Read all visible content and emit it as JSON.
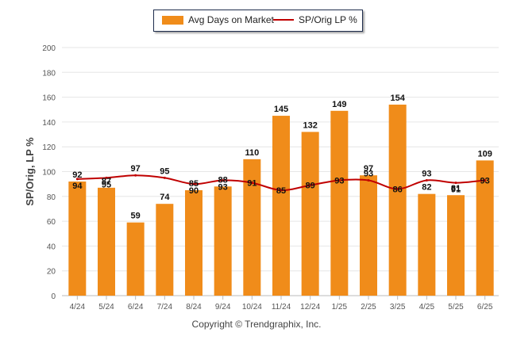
{
  "legend": {
    "bar_label": "Avg Days on Market",
    "line_label": "SP/Orig LP %"
  },
  "footer": {
    "copyright": "Copyright © Trendgraphix, Inc."
  },
  "colors": {
    "bar": "#f08c1a",
    "line": "#c00000",
    "grid": "#e6e6e6"
  },
  "chart_data": {
    "type": "bar",
    "ylabel": "SP/Orig, LP %",
    "xlabel": "",
    "ylim": [
      0,
      200
    ],
    "yticks": [
      0,
      20,
      40,
      60,
      80,
      100,
      120,
      140,
      160,
      180,
      200
    ],
    "grid": true,
    "legend_position": "top-center",
    "categories": [
      "4/24",
      "5/24",
      "6/24",
      "7/24",
      "8/24",
      "9/24",
      "10/24",
      "11/24",
      "12/24",
      "1/25",
      "2/25",
      "3/25",
      "4/25",
      "5/25",
      "6/25"
    ],
    "series": [
      {
        "name": "Avg Days on Market",
        "kind": "bar",
        "values": [
          92,
          87,
          59,
          74,
          85,
          88,
          110,
          145,
          132,
          149,
          97,
          154,
          82,
          81,
          109
        ]
      },
      {
        "name": "SP/Orig LP %",
        "kind": "line",
        "values": [
          94,
          95,
          97,
          95,
          90,
          93,
          91,
          85,
          89,
          93,
          93,
          86,
          93,
          91,
          93
        ]
      }
    ]
  }
}
